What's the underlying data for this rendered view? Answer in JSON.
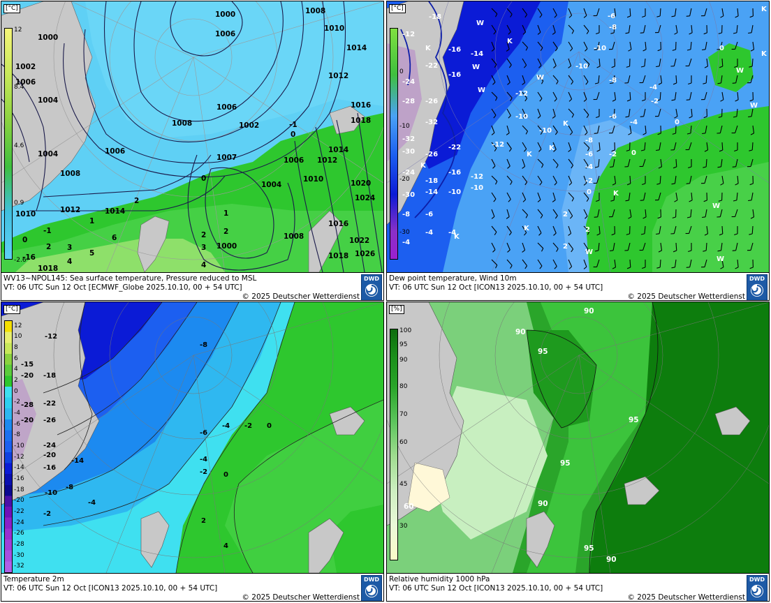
{
  "panels": [
    {
      "id": "sst",
      "line1": "WV13~NPOL145: Sea surface temperature,  Pressure reduced to MSL",
      "line2": "VT: 06 UTC Sun  12 Oct [ECMWF_Globe 2025.10.10, 00 + 54 UTC]",
      "copyright": "© 2025 Deutscher Wetterdienst",
      "logo": "DWD",
      "unit": "[°C]",
      "legend_ticks": [
        "12",
        "8.4",
        "4.6",
        "0.9",
        "-2.6"
      ],
      "isobars": [
        "1000",
        "1008",
        "1010",
        "1004",
        "1006",
        "1002",
        "1014",
        "1012",
        "1016",
        "1018",
        "1020",
        "1024",
        "1022",
        "1026",
        "1007"
      ],
      "values": [
        "-1",
        "0",
        "1",
        "2",
        "3",
        "4",
        "5",
        "6",
        "-16"
      ]
    },
    {
      "id": "dewpoint",
      "line1": "Dew point temperature, Wind 10m",
      "line2": "VT: 06 UTC Sun  12 Oct [ICON13 2025.10.10,  00 + 54 UTC]",
      "copyright": "© 2025 Deutscher Wetterdienst",
      "logo": "DWD",
      "unit": "[°C]",
      "legend_ticks": [
        "0",
        "-10",
        "-20",
        "-30"
      ],
      "values": [
        "-18",
        "-12",
        "-10",
        "-16",
        "-14",
        "-22",
        "-24",
        "-28",
        "-26",
        "-32",
        "-30",
        "-8",
        "-6",
        "-4",
        "-2",
        "0",
        "2"
      ],
      "markers": [
        "W",
        "K"
      ]
    },
    {
      "id": "t2m",
      "line1": "Temperature 2m",
      "line2": "VT: 06 UTC Sun  12 Oct [ICON13 2025.10.10, 00 + 54 UTC]",
      "copyright": "© 2025 Deutscher Wetterdienst",
      "logo": "DWD",
      "unit": "[°C]",
      "legend_ticks": [
        "12",
        "10",
        "8",
        "6",
        "4",
        "2",
        "0",
        "-2",
        "-4",
        "-6",
        "-8",
        "-10",
        "-12",
        "-14",
        "-16",
        "-18",
        "-20",
        "-22",
        "-24",
        "-26",
        "-28",
        "-30",
        "-32"
      ],
      "values": [
        "-8",
        "-12",
        "-15",
        "-20",
        "-18",
        "-22",
        "-26",
        "-24",
        "-28",
        "-16",
        "-14",
        "-10",
        "-6",
        "-4",
        "-2",
        "0",
        "2",
        "4"
      ]
    },
    {
      "id": "rh",
      "line1": "Relative humidity 1000 hPa",
      "line2": "VT: 06 UTC Sun  12 Oct [ICON13 2025.10.10,  00 + 54 UTC]",
      "copyright": "© 2025 Deutscher Wetterdienst",
      "logo": "DWD",
      "unit": "[%]",
      "legend_ticks": [
        "100",
        "95",
        "90",
        "80",
        "70",
        "60",
        "45",
        "30"
      ],
      "values": [
        "90",
        "95",
        "60"
      ]
    }
  ],
  "colors": {
    "sea_light": "#5fd0f5",
    "sea_cyan": "#3fe0f0",
    "land_gray": "#c8c8c8",
    "green1": "#2ec72e",
    "green2": "#54d854",
    "green3": "#8ee06a",
    "blue_deep": "#0b1bd6",
    "blue_mid": "#1c5ff0",
    "blue_light": "#4aa2f5",
    "rh_dark": "#0d7d0d",
    "rh_mid": "#2aa52a",
    "rh_light": "#7bd07b",
    "rh_pale": "#c8efc0"
  }
}
